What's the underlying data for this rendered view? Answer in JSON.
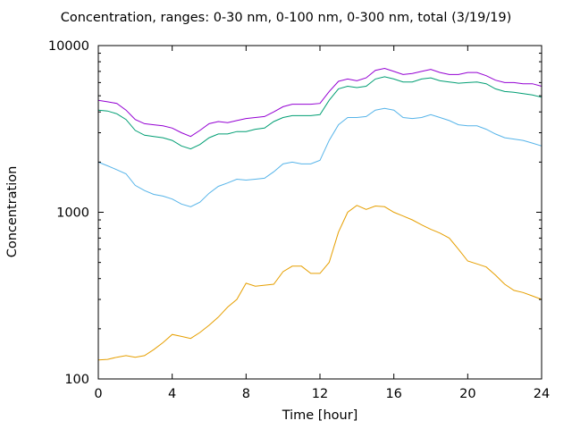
{
  "chart_data": {
    "type": "line",
    "title": "Concentration, ranges: 0-30 nm, 0-100 nm, 0-300 nm, total (3/19/19)",
    "xlabel": "Time [hour]",
    "ylabel": "Concentration",
    "xlim": [
      0,
      24
    ],
    "ylim": [
      100,
      10000
    ],
    "yscale": "log",
    "grid": false,
    "legend": "none",
    "xticks": [
      0,
      4,
      8,
      12,
      16,
      20,
      24
    ],
    "yticks": [
      100,
      1000,
      10000
    ],
    "ytick_labels": [
      "100",
      "1000",
      "10000"
    ],
    "series": [
      {
        "color": "#e69f00",
        "x": [
          0,
          0.5,
          1,
          1.5,
          2,
          2.5,
          3,
          3.5,
          4,
          4.5,
          5,
          5.5,
          6,
          6.5,
          7,
          7.5,
          8,
          8.5,
          9,
          9.5,
          10,
          10.5,
          11,
          11.5,
          12,
          12.5,
          13,
          13.5,
          14,
          14.5,
          15,
          15.5,
          16,
          16.5,
          17,
          17.5,
          18,
          18.5,
          19,
          19.5,
          20,
          20.5,
          21,
          21.5,
          22,
          22.5,
          23,
          23.5,
          24
        ],
        "values": [
          130,
          131,
          135,
          138,
          135,
          138,
          150,
          165,
          185,
          180,
          175,
          190,
          210,
          235,
          270,
          300,
          375,
          360,
          365,
          370,
          440,
          475,
          475,
          430,
          430,
          500,
          760,
          1000,
          1100,
          1040,
          1090,
          1080,
          1000,
          950,
          900,
          840,
          790,
          750,
          700,
          600,
          510,
          490,
          470,
          420,
          370,
          340,
          330,
          315,
          300
        ]
      },
      {
        "color": "#56b4e9",
        "x": [
          0,
          0.5,
          1,
          1.5,
          2,
          2.5,
          3,
          3.5,
          4,
          4.5,
          5,
          5.5,
          6,
          6.5,
          7,
          7.5,
          8,
          8.5,
          9,
          9.5,
          10,
          10.5,
          11,
          11.5,
          12,
          12.5,
          13,
          13.5,
          14,
          14.5,
          15,
          15.5,
          16,
          16.5,
          17,
          17.5,
          18,
          18.5,
          19,
          19.5,
          20,
          20.5,
          21,
          21.5,
          22,
          22.5,
          23,
          23.5,
          24
        ],
        "values": [
          2000,
          1900,
          1800,
          1700,
          1450,
          1350,
          1280,
          1250,
          1200,
          1120,
          1080,
          1150,
          1300,
          1430,
          1500,
          1580,
          1560,
          1580,
          1600,
          1750,
          1950,
          2000,
          1950,
          1950,
          2050,
          2700,
          3350,
          3700,
          3700,
          3750,
          4100,
          4200,
          4100,
          3700,
          3650,
          3700,
          3850,
          3700,
          3550,
          3350,
          3300,
          3300,
          3150,
          2950,
          2800,
          2750,
          2700,
          2600,
          2500
        ]
      },
      {
        "color": "#009e73",
        "x": [
          0,
          0.5,
          1,
          1.5,
          2,
          2.5,
          3,
          3.5,
          4,
          4.5,
          5,
          5.5,
          6,
          6.5,
          7,
          7.5,
          8,
          8.5,
          9,
          9.5,
          10,
          10.5,
          11,
          11.5,
          12,
          12.5,
          13,
          13.5,
          14,
          14.5,
          15,
          15.5,
          16,
          16.5,
          17,
          17.5,
          18,
          18.5,
          19,
          19.5,
          20,
          20.5,
          21,
          21.5,
          22,
          22.5,
          23,
          23.5,
          24
        ],
        "values": [
          4100,
          4050,
          3900,
          3600,
          3100,
          2900,
          2850,
          2800,
          2700,
          2500,
          2400,
          2550,
          2800,
          2950,
          2950,
          3050,
          3050,
          3150,
          3200,
          3500,
          3700,
          3800,
          3800,
          3800,
          3850,
          4700,
          5500,
          5700,
          5600,
          5700,
          6300,
          6500,
          6300,
          6050,
          6050,
          6300,
          6400,
          6150,
          6050,
          5950,
          6000,
          6050,
          5900,
          5500,
          5300,
          5250,
          5150,
          5050,
          4900
        ]
      },
      {
        "color": "#9400d3",
        "x": [
          0,
          0.5,
          1,
          1.5,
          2,
          2.5,
          3,
          3.5,
          4,
          4.5,
          5,
          5.5,
          6,
          6.5,
          7,
          7.5,
          8,
          8.5,
          9,
          9.5,
          10,
          10.5,
          11,
          11.5,
          12,
          12.5,
          13,
          13.5,
          14,
          14.5,
          15,
          15.5,
          16,
          16.5,
          17,
          17.5,
          18,
          18.5,
          19,
          19.5,
          20,
          20.5,
          21,
          21.5,
          22,
          22.5,
          23,
          23.5,
          24
        ],
        "values": [
          4700,
          4600,
          4500,
          4100,
          3600,
          3400,
          3350,
          3300,
          3200,
          3000,
          2850,
          3100,
          3400,
          3500,
          3450,
          3550,
          3650,
          3700,
          3750,
          4000,
          4300,
          4450,
          4450,
          4450,
          4500,
          5300,
          6100,
          6300,
          6150,
          6400,
          7100,
          7300,
          7000,
          6700,
          6800,
          7000,
          7200,
          6900,
          6700,
          6700,
          6900,
          6900,
          6600,
          6200,
          6000,
          6000,
          5900,
          5900,
          5700
        ]
      }
    ]
  }
}
